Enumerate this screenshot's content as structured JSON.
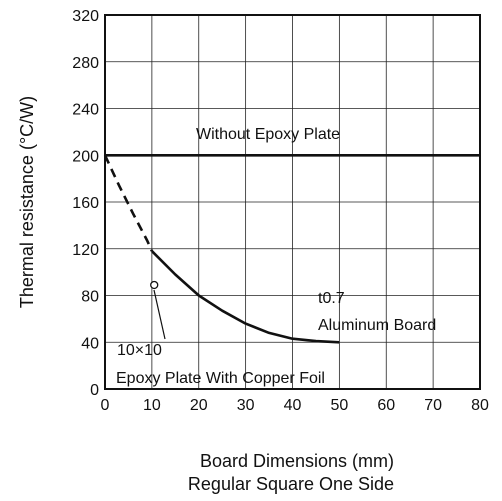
{
  "chart_data": {
    "type": "line",
    "ylabel": "Thermal resistance  (°C/W)",
    "xlabel_lines": [
      "Board Dimensions  (mm)",
      "Regular Square One Side"
    ],
    "xlim": [
      0,
      80
    ],
    "ylim": [
      0,
      320
    ],
    "x_ticks": [
      0,
      10,
      20,
      30,
      40,
      50,
      60,
      70,
      80
    ],
    "y_ticks": [
      0,
      40,
      80,
      120,
      160,
      200,
      240,
      280,
      320
    ],
    "grid": true,
    "series": [
      {
        "name": "Without Epoxy Plate",
        "style": "solid",
        "points": [
          [
            0,
            200
          ],
          [
            80,
            200
          ]
        ]
      },
      {
        "name": "t0.7 Aluminum Board",
        "style": "dashed",
        "points": [
          [
            0,
            200
          ],
          [
            3,
            174
          ],
          [
            6,
            150
          ],
          [
            9,
            127
          ],
          [
            10,
            118
          ]
        ]
      },
      {
        "name": "t0.7 Aluminum Board",
        "style": "solid",
        "points": [
          [
            10,
            118
          ],
          [
            15,
            98
          ],
          [
            20,
            80
          ],
          [
            25,
            67
          ],
          [
            30,
            56
          ],
          [
            35,
            48
          ],
          [
            40,
            43
          ],
          [
            45,
            41
          ],
          [
            50,
            40
          ]
        ]
      },
      {
        "name": "10×10 Epoxy Plate With Copper Foil",
        "style": "marker",
        "points": [
          [
            10.5,
            89
          ]
        ]
      }
    ],
    "annotations": {
      "without_epoxy": "Without Epoxy Plate",
      "aluminum_line1": "t0.7",
      "aluminum_line2": "Aluminum Board",
      "epoxy_size": "10×10",
      "epoxy_desc": "Epoxy Plate With Copper Foil"
    }
  }
}
